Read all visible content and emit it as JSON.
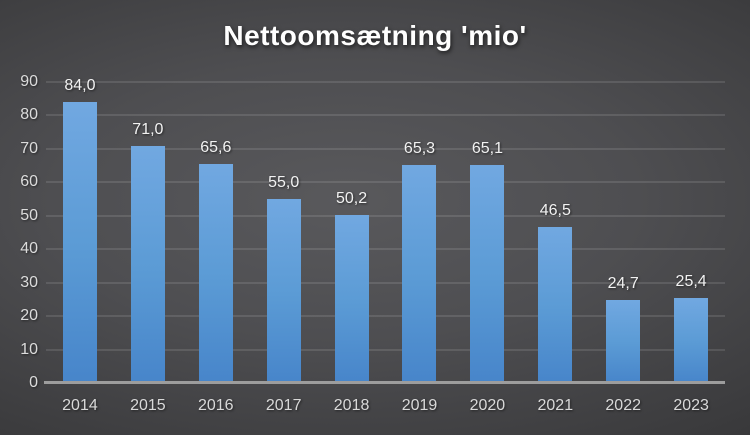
{
  "title": "Nettoomsætning 'mio'",
  "chart_data": {
    "type": "bar",
    "title": "Nettoomsætning 'mio'",
    "categories": [
      "2014",
      "2015",
      "2016",
      "2017",
      "2018",
      "2019",
      "2020",
      "2021",
      "2022",
      "2023"
    ],
    "values": [
      84.0,
      71.0,
      65.6,
      55.0,
      50.2,
      65.3,
      65.1,
      46.5,
      24.7,
      25.4
    ],
    "value_labels": [
      "84,0",
      "71,0",
      "65,6",
      "55,0",
      "50,2",
      "65,3",
      "65,1",
      "46,5",
      "24,7",
      "25,4"
    ],
    "xlabel": "",
    "ylabel": "",
    "ylim": [
      0,
      90
    ],
    "yticks": [
      0,
      10,
      20,
      30,
      40,
      50,
      60,
      70,
      80,
      90
    ],
    "grid": true,
    "legend": false
  },
  "colors": {
    "bar_top": "#71a8e1",
    "bar_mid": "#5b9bd5",
    "bar_bottom": "#4785ca",
    "background_center": "#59595c",
    "background_edge": "#242426",
    "gridline": "rgba(255,255,255,0.22)",
    "axis_line": "#9d9d9d",
    "tick_text": "#dcdcdc",
    "value_text": "#f2f2f2",
    "title_text": "#ffffff"
  }
}
